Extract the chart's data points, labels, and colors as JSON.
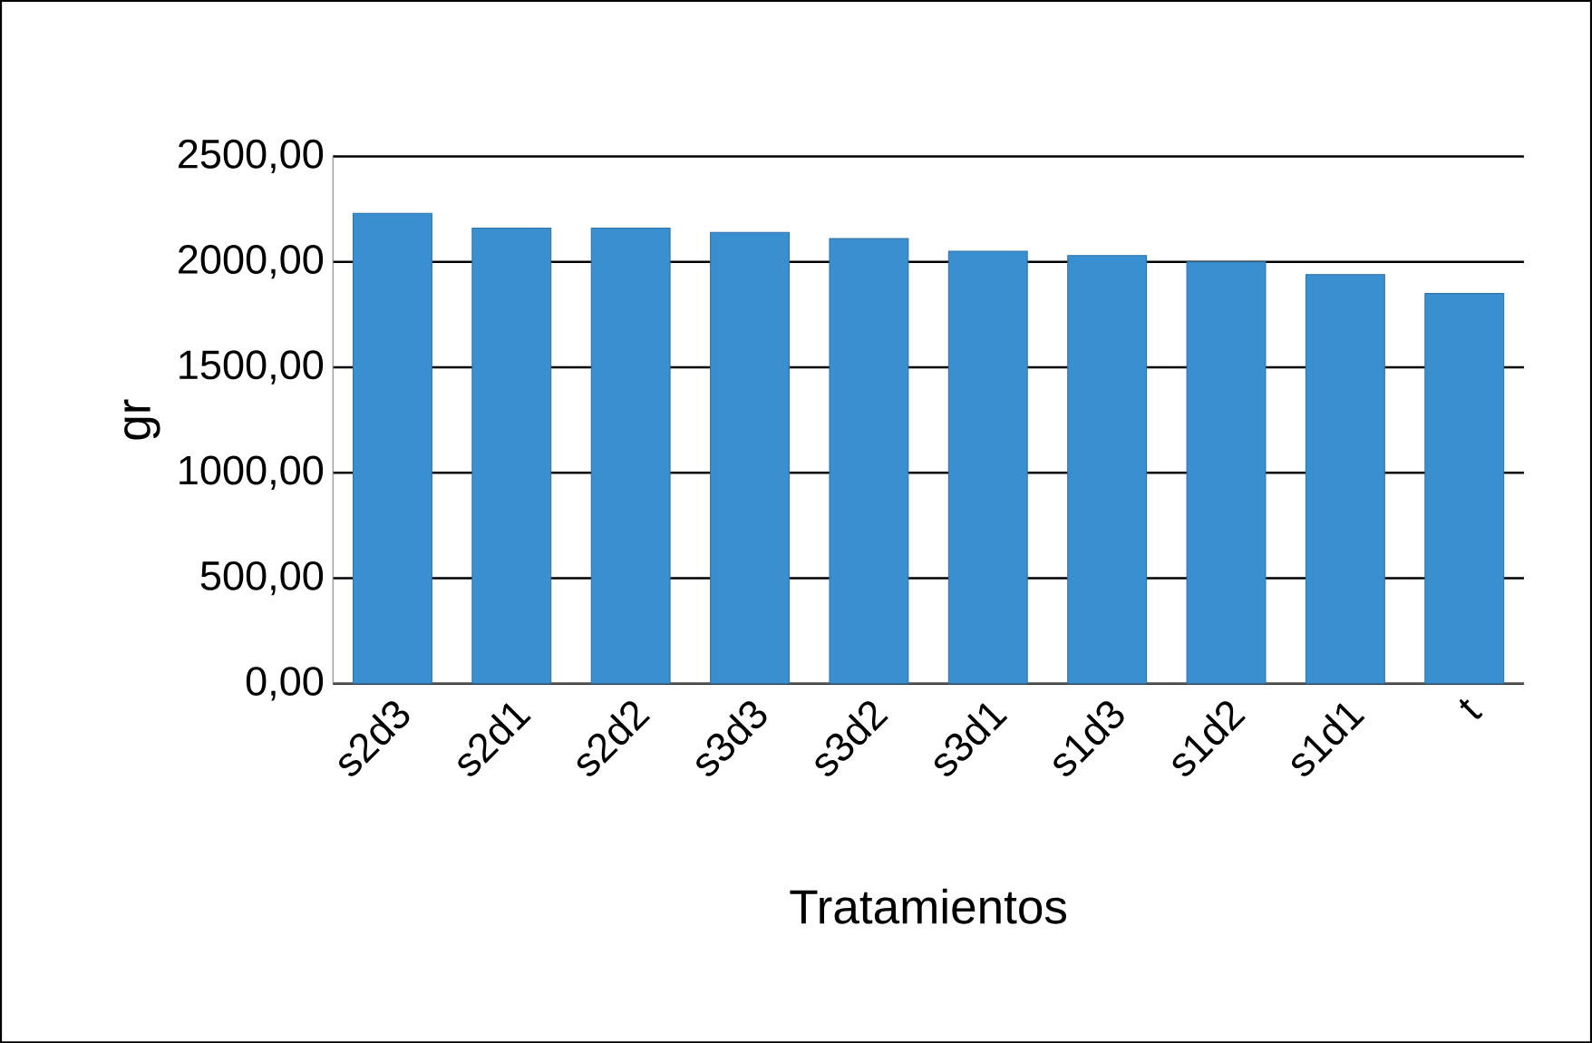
{
  "chart_data": {
    "type": "bar",
    "xlabel": "Tratamientos",
    "ylabel": "gr",
    "categories": [
      "s2d3",
      "s2d1",
      "s2d2",
      "s3d3",
      "s3d2",
      "s3d1",
      "s1d3",
      "s1d2",
      "s1d1",
      "t"
    ],
    "values": [
      2230,
      2160,
      2160,
      2140,
      2110,
      2050,
      2030,
      2000,
      1940,
      1850
    ],
    "color": "#3a8fd0",
    "ylim": [
      0,
      2500
    ],
    "yticks": [
      {
        "value": 0,
        "label": "0,00"
      },
      {
        "value": 500,
        "label": "500,00"
      },
      {
        "value": 1000,
        "label": "1000,00"
      },
      {
        "value": 1500,
        "label": "1500,00"
      },
      {
        "value": 2000,
        "label": "2000,00"
      },
      {
        "value": 2500,
        "label": "2500,00"
      }
    ],
    "grid": "y"
  }
}
